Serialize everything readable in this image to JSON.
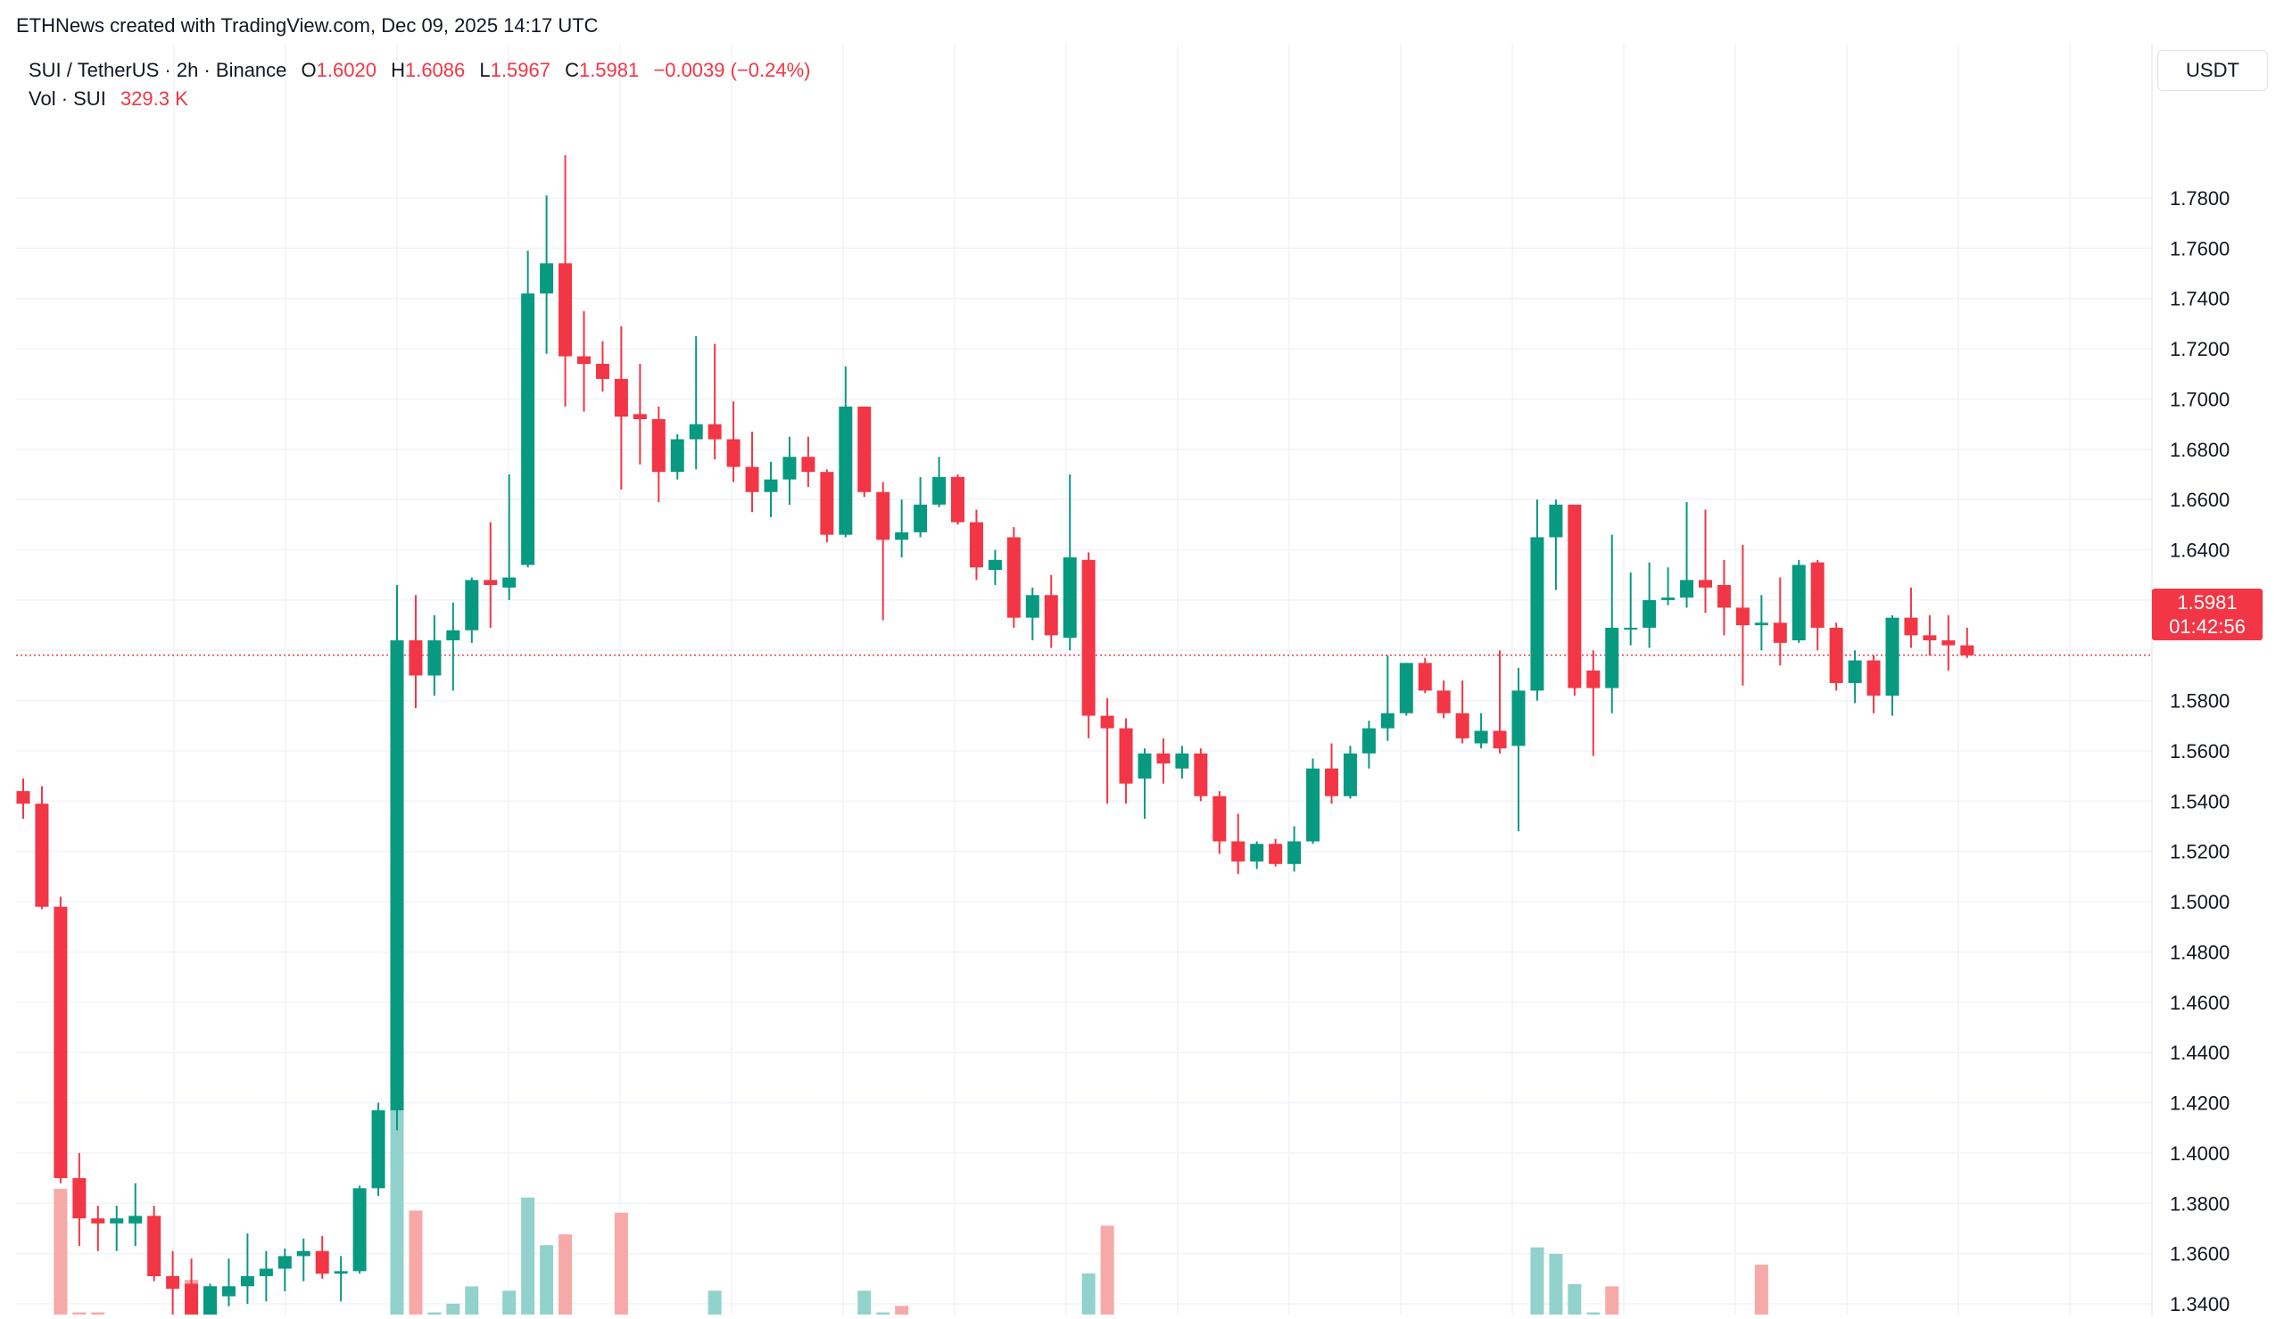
{
  "header": {
    "credit": "ETHNews created with TradingView.com, Dec 09, 2025 14:17 UTC",
    "symbol": "SUI / TetherUS · 2h · Binance",
    "open_label": "O",
    "open": "1.6020",
    "high_label": "H",
    "high": "1.6086",
    "low_label": "L",
    "low": "1.5967",
    "close_label": "C",
    "close": "1.5981",
    "change": "−0.0039 (−0.24%)",
    "volume_label": "Vol · SUI",
    "volume": "329.3 K"
  },
  "currency_button": "USDT",
  "price_badge": {
    "price": "1.5981",
    "countdown": "01:42:56"
  },
  "colors": {
    "up": "#089981",
    "down": "#f23645",
    "up_volume": "#92d2cc",
    "down_volume": "#f7a9a7",
    "grid": "#f0f3fa",
    "price_line": "#f23645"
  },
  "chart_data": {
    "type": "candlestick",
    "symbol": "SUI / TetherUS",
    "interval": "2h",
    "exchange": "Binance",
    "ylim": [
      1.332,
      1.808
    ],
    "y_ticks": [
      "1.7800",
      "1.7600",
      "1.7400",
      "1.7200",
      "1.7000",
      "1.6800",
      "1.6600",
      "1.6400",
      "1.6200",
      "1.6000",
      "1.5800",
      "1.5600",
      "1.5400",
      "1.5200",
      "1.5000",
      "1.4800",
      "1.4600",
      "1.4400",
      "1.4200",
      "1.4000",
      "1.3800",
      "1.3600",
      "1.3400"
    ],
    "last_price": 1.5981,
    "candles": [
      {
        "o": 1.544,
        "h": 1.549,
        "l": 1.533,
        "c": 1.539
      },
      {
        "o": 1.539,
        "h": 1.546,
        "l": 1.497,
        "c": 1.498
      },
      {
        "o": 1.498,
        "h": 1.502,
        "l": 1.388,
        "c": 1.39
      },
      {
        "o": 1.39,
        "h": 1.4,
        "l": 1.363,
        "c": 1.374
      },
      {
        "o": 1.374,
        "h": 1.379,
        "l": 1.361,
        "c": 1.372
      },
      {
        "o": 1.372,
        "h": 1.379,
        "l": 1.361,
        "c": 1.374
      },
      {
        "o": 1.372,
        "h": 1.388,
        "l": 1.363,
        "c": 1.375
      },
      {
        "o": 1.375,
        "h": 1.379,
        "l": 1.349,
        "c": 1.351
      },
      {
        "o": 1.351,
        "h": 1.361,
        "l": 1.328,
        "c": 1.346
      },
      {
        "o": 1.348,
        "h": 1.358,
        "l": 1.324,
        "c": 1.332
      },
      {
        "o": 1.328,
        "h": 1.348,
        "l": 1.322,
        "c": 1.347
      },
      {
        "o": 1.343,
        "h": 1.358,
        "l": 1.339,
        "c": 1.347
      },
      {
        "o": 1.347,
        "h": 1.368,
        "l": 1.34,
        "c": 1.351
      },
      {
        "o": 1.351,
        "h": 1.361,
        "l": 1.341,
        "c": 1.354
      },
      {
        "o": 1.354,
        "h": 1.362,
        "l": 1.345,
        "c": 1.359
      },
      {
        "o": 1.359,
        "h": 1.366,
        "l": 1.349,
        "c": 1.361
      },
      {
        "o": 1.361,
        "h": 1.367,
        "l": 1.35,
        "c": 1.352
      },
      {
        "o": 1.352,
        "h": 1.359,
        "l": 1.341,
        "c": 1.353
      },
      {
        "o": 1.353,
        "h": 1.387,
        "l": 1.352,
        "c": 1.386
      },
      {
        "o": 1.386,
        "h": 1.42,
        "l": 1.383,
        "c": 1.417
      },
      {
        "o": 1.417,
        "h": 1.626,
        "l": 1.409,
        "c": 1.604
      },
      {
        "o": 1.604,
        "h": 1.622,
        "l": 1.577,
        "c": 1.59
      },
      {
        "o": 1.59,
        "h": 1.614,
        "l": 1.582,
        "c": 1.604
      },
      {
        "o": 1.604,
        "h": 1.619,
        "l": 1.584,
        "c": 1.608
      },
      {
        "o": 1.608,
        "h": 1.629,
        "l": 1.603,
        "c": 1.628
      },
      {
        "o": 1.628,
        "h": 1.651,
        "l": 1.609,
        "c": 1.626
      },
      {
        "o": 1.625,
        "h": 1.67,
        "l": 1.62,
        "c": 1.629
      },
      {
        "o": 1.634,
        "h": 1.759,
        "l": 1.633,
        "c": 1.742
      },
      {
        "o": 1.742,
        "h": 1.781,
        "l": 1.718,
        "c": 1.754
      },
      {
        "o": 1.754,
        "h": 1.797,
        "l": 1.697,
        "c": 1.717
      },
      {
        "o": 1.717,
        "h": 1.735,
        "l": 1.695,
        "c": 1.714
      },
      {
        "o": 1.714,
        "h": 1.723,
        "l": 1.703,
        "c": 1.708
      },
      {
        "o": 1.708,
        "h": 1.729,
        "l": 1.664,
        "c": 1.693
      },
      {
        "o": 1.694,
        "h": 1.714,
        "l": 1.674,
        "c": 1.692
      },
      {
        "o": 1.692,
        "h": 1.697,
        "l": 1.659,
        "c": 1.671
      },
      {
        "o": 1.671,
        "h": 1.686,
        "l": 1.668,
        "c": 1.684
      },
      {
        "o": 1.684,
        "h": 1.725,
        "l": 1.672,
        "c": 1.69
      },
      {
        "o": 1.69,
        "h": 1.722,
        "l": 1.676,
        "c": 1.684
      },
      {
        "o": 1.684,
        "h": 1.699,
        "l": 1.667,
        "c": 1.673
      },
      {
        "o": 1.673,
        "h": 1.687,
        "l": 1.655,
        "c": 1.663
      },
      {
        "o": 1.663,
        "h": 1.675,
        "l": 1.653,
        "c": 1.668
      },
      {
        "o": 1.668,
        "h": 1.685,
        "l": 1.658,
        "c": 1.677
      },
      {
        "o": 1.677,
        "h": 1.685,
        "l": 1.665,
        "c": 1.671
      },
      {
        "o": 1.671,
        "h": 1.672,
        "l": 1.643,
        "c": 1.646
      },
      {
        "o": 1.646,
        "h": 1.713,
        "l": 1.645,
        "c": 1.697
      },
      {
        "o": 1.697,
        "h": 1.697,
        "l": 1.661,
        "c": 1.663
      },
      {
        "o": 1.663,
        "h": 1.667,
        "l": 1.612,
        "c": 1.644
      },
      {
        "o": 1.644,
        "h": 1.66,
        "l": 1.637,
        "c": 1.647
      },
      {
        "o": 1.647,
        "h": 1.669,
        "l": 1.645,
        "c": 1.658
      },
      {
        "o": 1.658,
        "h": 1.677,
        "l": 1.657,
        "c": 1.669
      },
      {
        "o": 1.669,
        "h": 1.67,
        "l": 1.65,
        "c": 1.651
      },
      {
        "o": 1.651,
        "h": 1.656,
        "l": 1.628,
        "c": 1.633
      },
      {
        "o": 1.632,
        "h": 1.64,
        "l": 1.626,
        "c": 1.636
      },
      {
        "o": 1.645,
        "h": 1.649,
        "l": 1.609,
        "c": 1.613
      },
      {
        "o": 1.613,
        "h": 1.625,
        "l": 1.604,
        "c": 1.622
      },
      {
        "o": 1.622,
        "h": 1.63,
        "l": 1.601,
        "c": 1.606
      },
      {
        "o": 1.605,
        "h": 1.67,
        "l": 1.6,
        "c": 1.637
      },
      {
        "o": 1.636,
        "h": 1.639,
        "l": 1.565,
        "c": 1.574
      },
      {
        "o": 1.574,
        "h": 1.581,
        "l": 1.539,
        "c": 1.569
      },
      {
        "o": 1.569,
        "h": 1.573,
        "l": 1.539,
        "c": 1.547
      },
      {
        "o": 1.549,
        "h": 1.561,
        "l": 1.533,
        "c": 1.559
      },
      {
        "o": 1.559,
        "h": 1.565,
        "l": 1.547,
        "c": 1.555
      },
      {
        "o": 1.553,
        "h": 1.562,
        "l": 1.549,
        "c": 1.559
      },
      {
        "o": 1.559,
        "h": 1.561,
        "l": 1.54,
        "c": 1.542
      },
      {
        "o": 1.542,
        "h": 1.544,
        "l": 1.519,
        "c": 1.524
      },
      {
        "o": 1.524,
        "h": 1.535,
        "l": 1.511,
        "c": 1.516
      },
      {
        "o": 1.516,
        "h": 1.524,
        "l": 1.513,
        "c": 1.523
      },
      {
        "o": 1.523,
        "h": 1.525,
        "l": 1.514,
        "c": 1.515
      },
      {
        "o": 1.515,
        "h": 1.53,
        "l": 1.512,
        "c": 1.524
      },
      {
        "o": 1.524,
        "h": 1.557,
        "l": 1.523,
        "c": 1.553
      },
      {
        "o": 1.553,
        "h": 1.563,
        "l": 1.539,
        "c": 1.542
      },
      {
        "o": 1.542,
        "h": 1.562,
        "l": 1.541,
        "c": 1.559
      },
      {
        "o": 1.559,
        "h": 1.572,
        "l": 1.553,
        "c": 1.569
      },
      {
        "o": 1.569,
        "h": 1.598,
        "l": 1.564,
        "c": 1.575
      },
      {
        "o": 1.575,
        "h": 1.595,
        "l": 1.574,
        "c": 1.595
      },
      {
        "o": 1.595,
        "h": 1.597,
        "l": 1.583,
        "c": 1.584
      },
      {
        "o": 1.584,
        "h": 1.588,
        "l": 1.573,
        "c": 1.575
      },
      {
        "o": 1.575,
        "h": 1.588,
        "l": 1.563,
        "c": 1.565
      },
      {
        "o": 1.563,
        "h": 1.575,
        "l": 1.561,
        "c": 1.568
      },
      {
        "o": 1.568,
        "h": 1.6,
        "l": 1.559,
        "c": 1.561
      },
      {
        "o": 1.562,
        "h": 1.593,
        "l": 1.528,
        "c": 1.584
      },
      {
        "o": 1.584,
        "h": 1.66,
        "l": 1.58,
        "c": 1.645
      },
      {
        "o": 1.645,
        "h": 1.66,
        "l": 1.624,
        "c": 1.658
      },
      {
        "o": 1.658,
        "h": 1.654,
        "l": 1.582,
        "c": 1.585
      },
      {
        "o": 1.592,
        "h": 1.6,
        "l": 1.558,
        "c": 1.585
      },
      {
        "o": 1.585,
        "h": 1.646,
        "l": 1.575,
        "c": 1.609
      },
      {
        "o": 1.609,
        "h": 1.631,
        "l": 1.602,
        "c": 1.609
      },
      {
        "o": 1.609,
        "h": 1.635,
        "l": 1.601,
        "c": 1.62
      },
      {
        "o": 1.62,
        "h": 1.633,
        "l": 1.618,
        "c": 1.621
      },
      {
        "o": 1.621,
        "h": 1.659,
        "l": 1.617,
        "c": 1.628
      },
      {
        "o": 1.628,
        "h": 1.656,
        "l": 1.615,
        "c": 1.625
      },
      {
        "o": 1.626,
        "h": 1.636,
        "l": 1.606,
        "c": 1.617
      },
      {
        "o": 1.617,
        "h": 1.642,
        "l": 1.586,
        "c": 1.61
      },
      {
        "o": 1.61,
        "h": 1.622,
        "l": 1.6,
        "c": 1.611
      },
      {
        "o": 1.611,
        "h": 1.629,
        "l": 1.594,
        "c": 1.603
      },
      {
        "o": 1.604,
        "h": 1.636,
        "l": 1.603,
        "c": 1.634
      },
      {
        "o": 1.635,
        "h": 1.636,
        "l": 1.6,
        "c": 1.609
      },
      {
        "o": 1.609,
        "h": 1.611,
        "l": 1.584,
        "c": 1.587
      },
      {
        "o": 1.587,
        "h": 1.6,
        "l": 1.579,
        "c": 1.596
      },
      {
        "o": 1.596,
        "h": 1.598,
        "l": 1.575,
        "c": 1.582
      },
      {
        "o": 1.582,
        "h": 1.614,
        "l": 1.574,
        "c": 1.613
      },
      {
        "o": 1.613,
        "h": 1.625,
        "l": 1.601,
        "c": 1.606
      },
      {
        "o": 1.606,
        "h": 1.614,
        "l": 1.598,
        "c": 1.604
      },
      {
        "o": 1.604,
        "h": 1.614,
        "l": 1.592,
        "c": 1.602
      },
      {
        "o": 1.602,
        "h": 1.609,
        "l": 1.597,
        "c": 1.598
      }
    ],
    "volume_bars": [
      {
        "i": 2,
        "v": 58,
        "d": "down"
      },
      {
        "i": 3,
        "v": 1,
        "d": "down"
      },
      {
        "i": 4,
        "v": 1,
        "d": "down"
      },
      {
        "i": 9,
        "v": 16,
        "d": "down"
      },
      {
        "i": 20,
        "v": 100,
        "d": "up"
      },
      {
        "i": 21,
        "v": 48,
        "d": "down"
      },
      {
        "i": 22,
        "v": 1,
        "d": "up"
      },
      {
        "i": 23,
        "v": 5,
        "d": "up"
      },
      {
        "i": 24,
        "v": 13,
        "d": "up"
      },
      {
        "i": 26,
        "v": 11,
        "d": "up"
      },
      {
        "i": 27,
        "v": 54,
        "d": "up"
      },
      {
        "i": 28,
        "v": 32,
        "d": "up"
      },
      {
        "i": 29,
        "v": 37,
        "d": "down"
      },
      {
        "i": 32,
        "v": 47,
        "d": "down"
      },
      {
        "i": 37,
        "v": 11,
        "d": "up"
      },
      {
        "i": 45,
        "v": 11,
        "d": "up"
      },
      {
        "i": 46,
        "v": 1,
        "d": "up"
      },
      {
        "i": 47,
        "v": 4,
        "d": "down"
      },
      {
        "i": 57,
        "v": 19,
        "d": "up"
      },
      {
        "i": 58,
        "v": 41,
        "d": "down"
      },
      {
        "i": 81,
        "v": 31,
        "d": "up"
      },
      {
        "i": 82,
        "v": 28,
        "d": "up"
      },
      {
        "i": 83,
        "v": 14,
        "d": "up"
      },
      {
        "i": 84,
        "v": 1,
        "d": "up"
      },
      {
        "i": 85,
        "v": 13,
        "d": "down"
      },
      {
        "i": 93,
        "v": 23,
        "d": "down"
      }
    ]
  }
}
